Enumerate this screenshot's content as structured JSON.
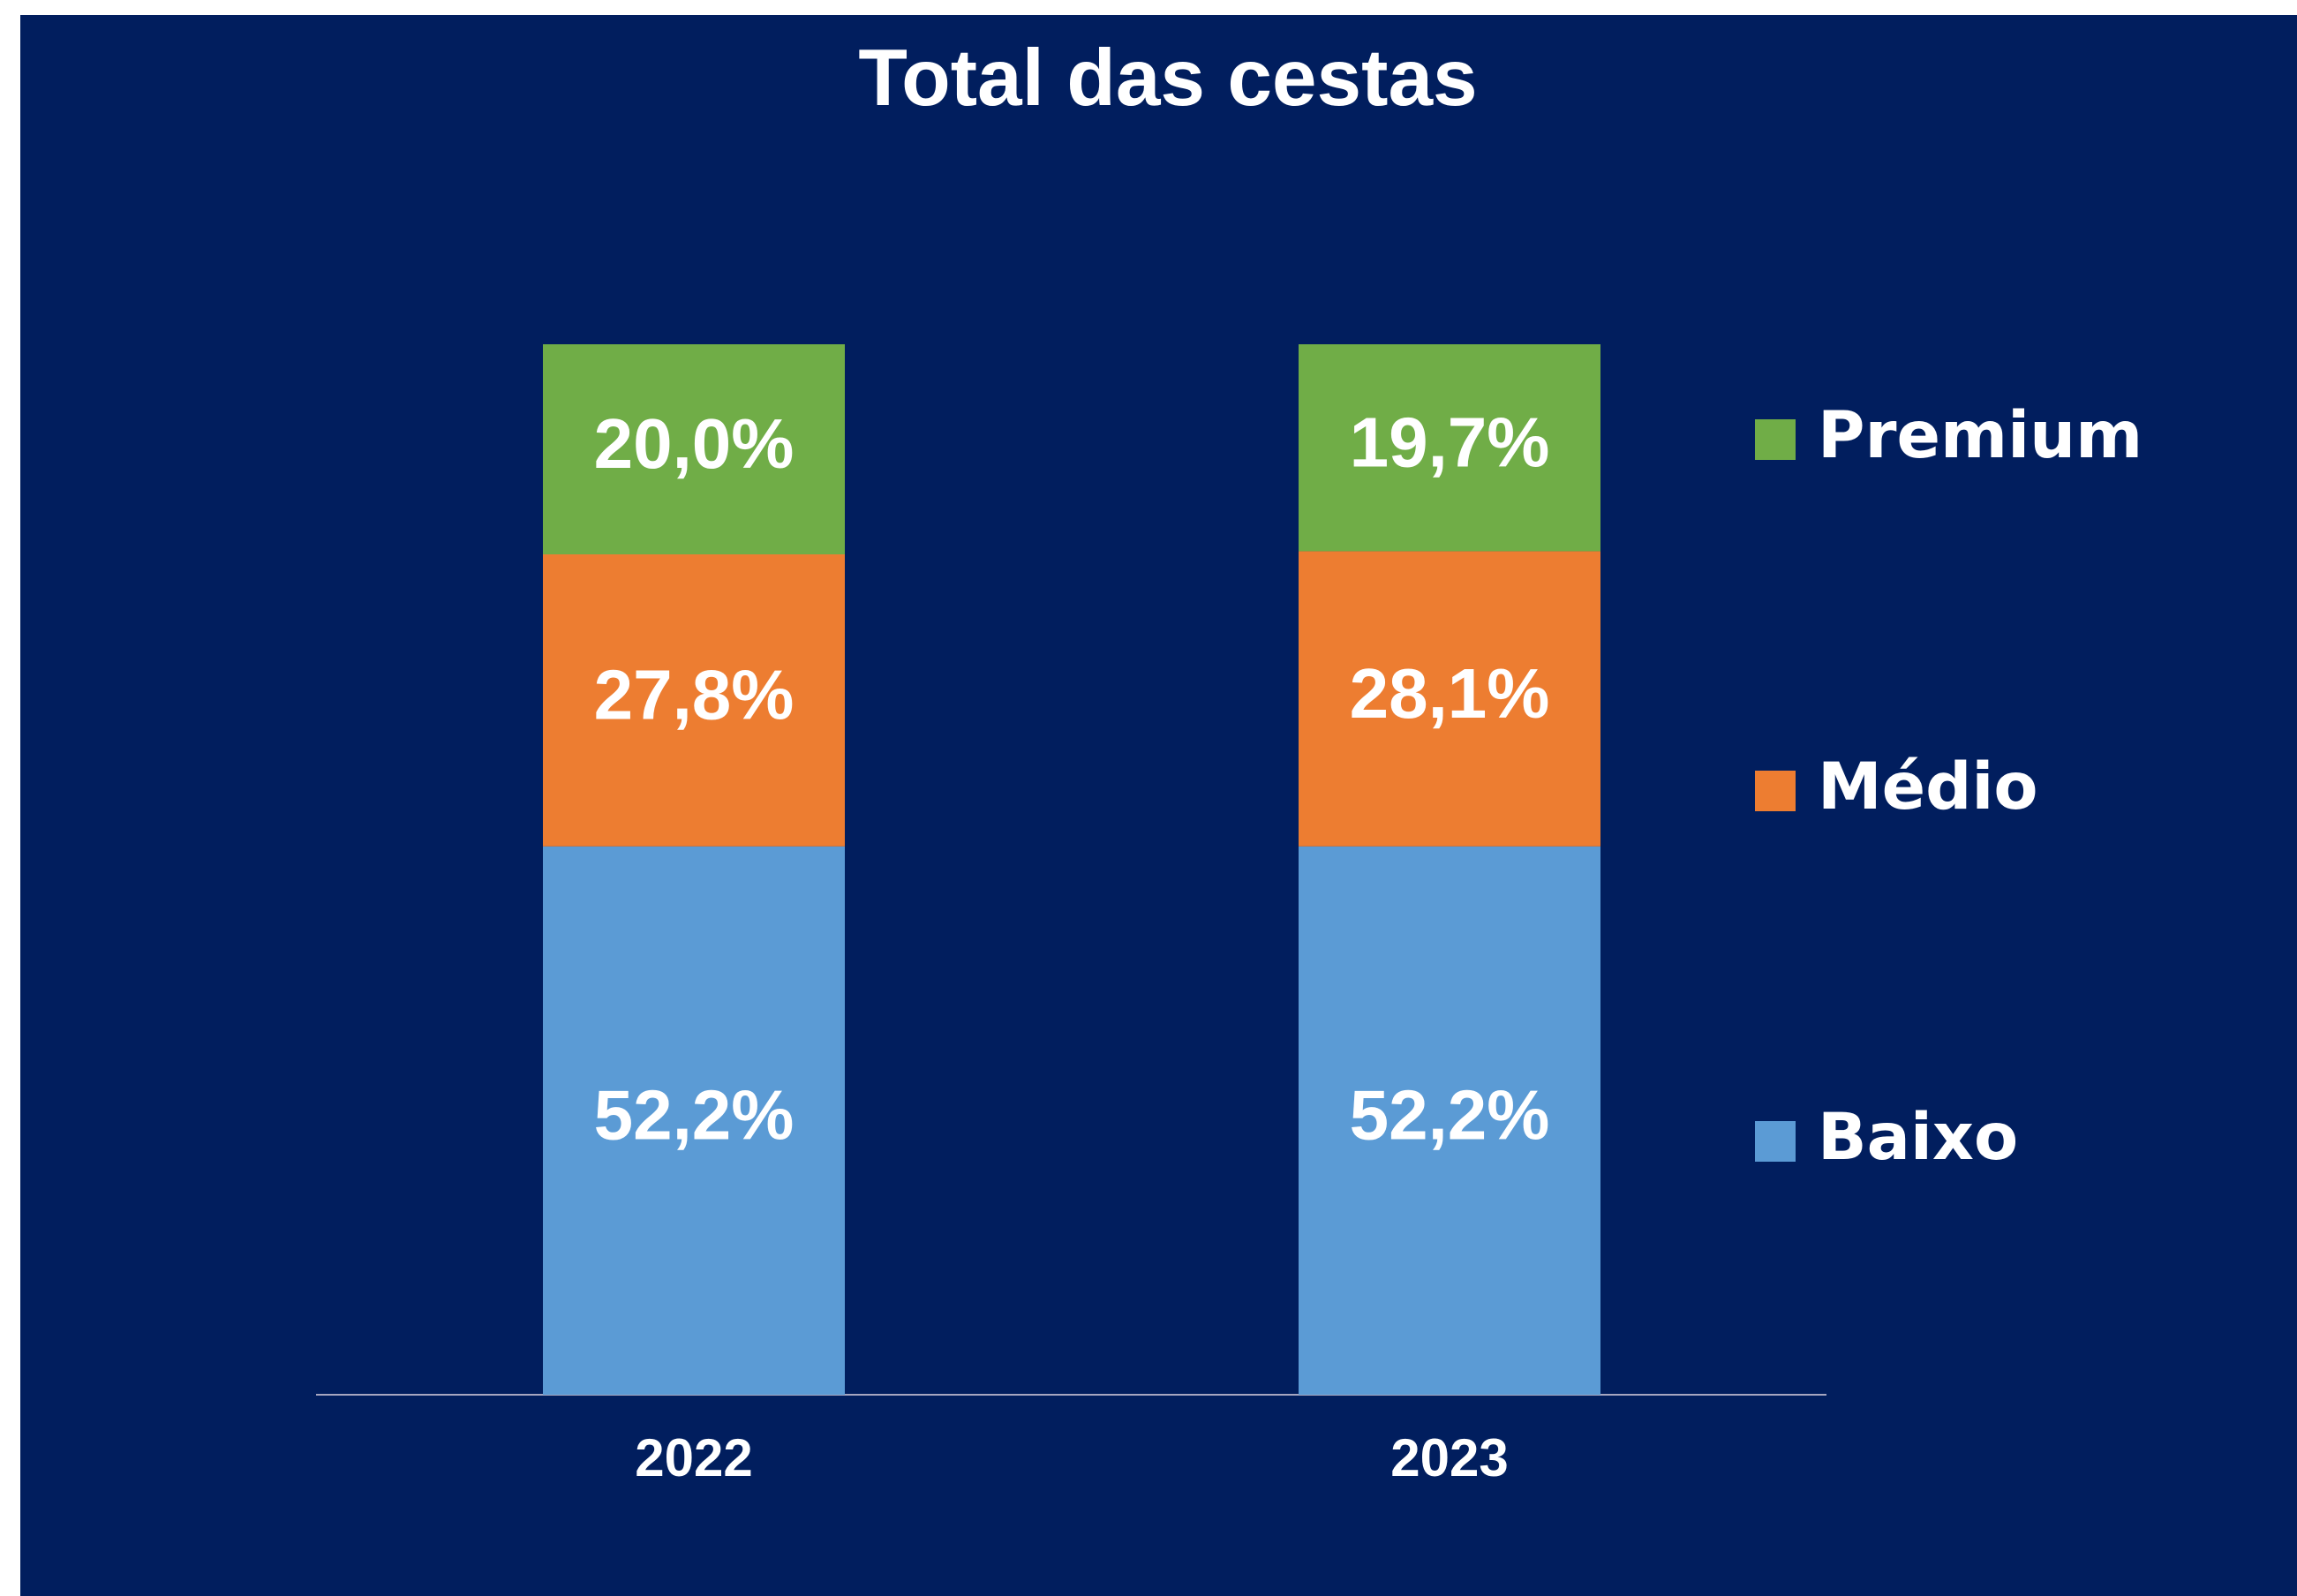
{
  "chart_data": {
    "type": "stacked_bar",
    "title": "Total das cestas",
    "categories": [
      "2022",
      "2023"
    ],
    "series": [
      {
        "name": "Baixo",
        "color": "#5b9bd5",
        "values": [
          52.2,
          52.2
        ],
        "value_labels": [
          "52,2%",
          "52,2%"
        ]
      },
      {
        "name": "Médio",
        "color": "#ed7d31",
        "values": [
          27.8,
          28.1
        ],
        "value_labels": [
          "27,8%",
          "28,1%"
        ]
      },
      {
        "name": "Premium",
        "color": "#70ad47",
        "values": [
          20.0,
          19.7
        ],
        "value_labels": [
          "20,0%",
          "19,7%"
        ]
      }
    ],
    "legend": "right"
  }
}
